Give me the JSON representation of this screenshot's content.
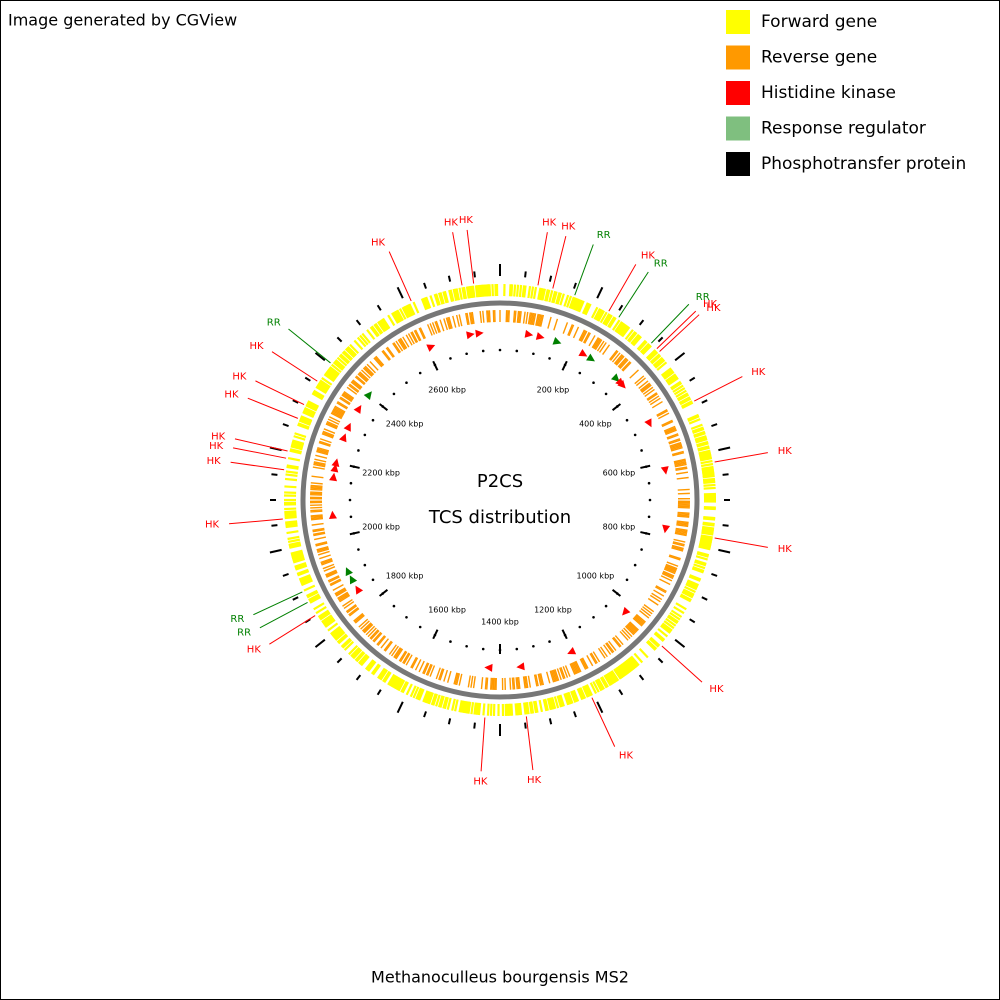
{
  "header": {
    "title": "Image generated by CGView"
  },
  "legend": [
    {
      "name": "Forward gene",
      "color": "#ffff00"
    },
    {
      "name": "Reverse gene",
      "color": "#ff9900"
    },
    {
      "name": "Histidine kinase",
      "color": "#ff0000"
    },
    {
      "name": "Response regulator",
      "color": "#7fbf7f"
    },
    {
      "name": "Phosphotransfer protein",
      "color": "#000000"
    }
  ],
  "center": {
    "title": "P2CS",
    "subtitle": "TCS distribution"
  },
  "footer": {
    "title": "Methanoculleus bourgensis MS2"
  },
  "axis": {
    "lim": [
      0,
      2800
    ],
    "ticks": [
      {
        "value": 200,
        "label": "200 kbp"
      },
      {
        "value": 400,
        "label": "400 kbp"
      },
      {
        "value": 600,
        "label": "600 kbp"
      },
      {
        "value": 800,
        "label": "800 kbp"
      },
      {
        "value": 1000,
        "label": "1000 kbp"
      },
      {
        "value": 1200,
        "label": "1200 kbp"
      },
      {
        "value": 1400,
        "label": "1400 kbp"
      },
      {
        "value": 1600,
        "label": "1600 kbp"
      },
      {
        "value": 1800,
        "label": "1800 kbp"
      },
      {
        "value": 2000,
        "label": "2000 kbp"
      },
      {
        "value": 2200,
        "label": "2200 kbp"
      },
      {
        "value": 2400,
        "label": "2400 kbp"
      },
      {
        "value": 2600,
        "label": "2600 kbp"
      }
    ]
  },
  "features": [
    {
      "label": "HK",
      "color": "#ff0000",
      "position": 78
    },
    {
      "label": "HK",
      "color": "#ff0000",
      "position": 109
    },
    {
      "label": "RR",
      "color": "#008000",
      "position": 156
    },
    {
      "label": "HK",
      "color": "#ff0000",
      "position": 233
    },
    {
      "label": "RR",
      "color": "#008000",
      "position": 257
    },
    {
      "label": "RR",
      "color": "#008000",
      "position": 342
    },
    {
      "label": "HK",
      "color": "#ff0000",
      "position": 358
    },
    {
      "label": "HK",
      "color": "#ff0000",
      "position": 366
    },
    {
      "label": "HK",
      "color": "#ff0000",
      "position": 490
    },
    {
      "label": "HK",
      "color": "#ff0000",
      "position": 622
    },
    {
      "label": "HK",
      "color": "#ff0000",
      "position": 778
    },
    {
      "label": "HK",
      "color": "#ff0000",
      "position": 1027
    },
    {
      "label": "HK",
      "color": "#ff0000",
      "position": 1206
    },
    {
      "label": "HK",
      "color": "#ff0000",
      "position": 1346
    },
    {
      "label": "HK",
      "color": "#ff0000",
      "position": 1431
    },
    {
      "label": "HK",
      "color": "#ff0000",
      "position": 1851
    },
    {
      "label": "RR",
      "color": "#008000",
      "position": 1882
    },
    {
      "label": "RR",
      "color": "#008000",
      "position": 1906
    },
    {
      "label": "HK",
      "color": "#ff0000",
      "position": 2061
    },
    {
      "label": "HK",
      "color": "#ff0000",
      "position": 2162
    },
    {
      "label": "HK",
      "color": "#ff0000",
      "position": 2186
    },
    {
      "label": "HK",
      "color": "#ff0000",
      "position": 2201
    },
    {
      "label": "HK",
      "color": "#ff0000",
      "position": 2271
    },
    {
      "label": "HK",
      "color": "#ff0000",
      "position": 2302
    },
    {
      "label": "HK",
      "color": "#ff0000",
      "position": 2357
    },
    {
      "label": "RR",
      "color": "#008000",
      "position": 2403
    },
    {
      "label": "HK",
      "color": "#ff0000",
      "position": 2613
    },
    {
      "label": "HK",
      "color": "#ff0000",
      "position": 2722
    },
    {
      "label": "HK",
      "color": "#ff0000",
      "position": 2746
    }
  ]
}
